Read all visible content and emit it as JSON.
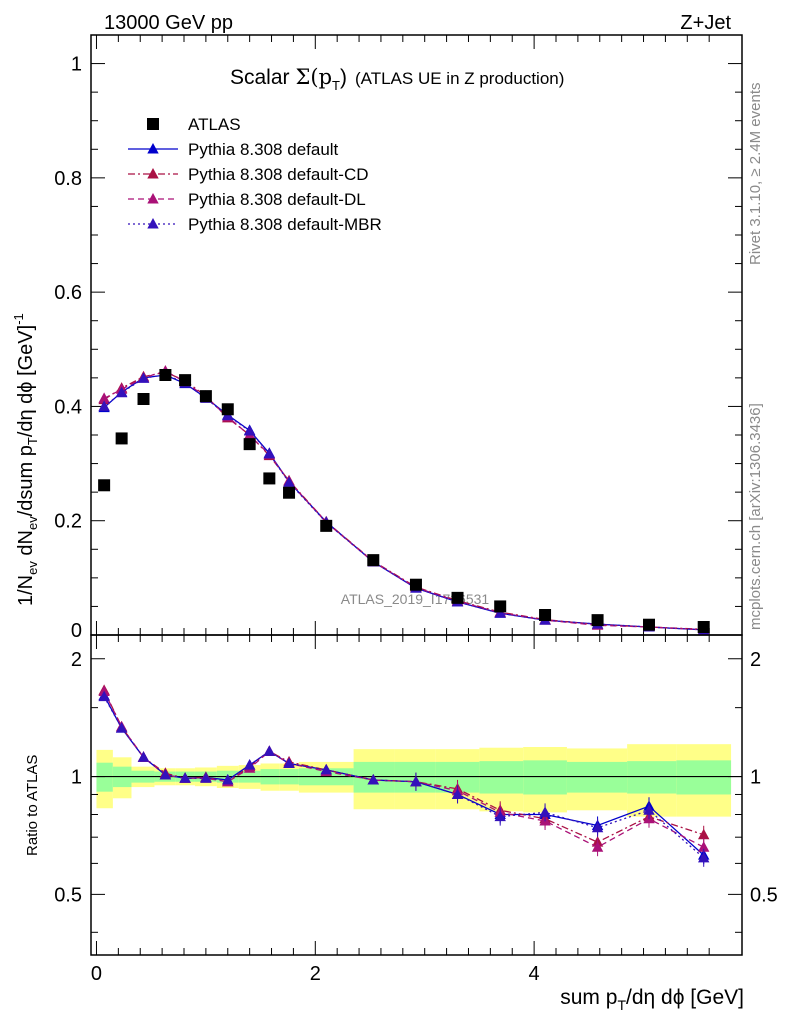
{
  "header": {
    "energy": "13000 GeV pp",
    "process": "Z+Jet",
    "title_main": "Scalar",
    "title_sigma": "Σ(p",
    "title_sub_T": "T",
    "title_tail": ")",
    "title_extra": "(ATLAS UE in Z production)",
    "watermark": "ATLAS_2019_I1736531",
    "rivet_label": "Rivet 3.1.10, ≥ 2.4M events",
    "mcplots_label": "mcplots.cern.ch [arXiv:1306.3436]"
  },
  "axes": {
    "ylabel_main": "1/N_ev dN_ev/dsum p_T/dη dϕ [GeV]^-1",
    "ylabel_ratio": "Ratio to ATLAS",
    "xlabel": "sum p_T/dη dϕ [GeV]",
    "ylabel_main_parts": {
      "a": "1/N",
      "b": "ev",
      "c": " dN",
      "d": "ev",
      "e": "/dsum p",
      "f": "T",
      "g": "/dη dϕ  [GeV]",
      "h": "-1"
    },
    "xlabel_parts": {
      "a": "sum p",
      "b": "T",
      "c": "/dη dϕ [GeV]"
    }
  },
  "chart_data": {
    "type": "scatter",
    "title": "Scalar Σ(p_T) (ATLAS UE in Z production)",
    "xlim": [
      -0.05,
      5.9
    ],
    "ylim": [
      0,
      1.05
    ],
    "ratio_ylim": [
      0.35,
      2.3
    ],
    "x_ticks": [
      0,
      2,
      4
    ],
    "y_ticks": [
      0,
      0.2,
      0.4,
      0.6,
      0.8,
      1
    ],
    "ratio_ticks": [
      0.5,
      1,
      2
    ],
    "legend_position": "top-left",
    "x": [
      0.07,
      0.23,
      0.43,
      0.63,
      0.81,
      1.0,
      1.2,
      1.4,
      1.58,
      1.76,
      2.1,
      2.53,
      2.92,
      3.3,
      3.69,
      4.1,
      4.58,
      5.05,
      5.55
    ],
    "bin_edges": [
      0.0,
      0.15,
      0.32,
      0.53,
      0.72,
      0.9,
      1.1,
      1.3,
      1.5,
      1.67,
      1.85,
      2.35,
      2.72,
      3.1,
      3.5,
      3.9,
      4.3,
      4.85,
      5.3,
      5.8
    ],
    "band_inner": [
      0.085,
      0.06,
      0.035,
      0.03,
      0.03,
      0.03,
      0.035,
      0.035,
      0.045,
      0.045,
      0.05,
      0.09,
      0.09,
      0.09,
      0.095,
      0.1,
      0.09,
      0.095,
      0.1
    ],
    "band_outer": [
      0.17,
      0.12,
      0.06,
      0.05,
      0.05,
      0.055,
      0.065,
      0.07,
      0.08,
      0.08,
      0.09,
      0.175,
      0.175,
      0.175,
      0.185,
      0.19,
      0.18,
      0.21,
      0.21
    ],
    "series": [
      {
        "name": "ATLAS",
        "marker": "square",
        "color": "#000000",
        "values": [
          0.262,
          0.344,
          0.413,
          0.455,
          0.446,
          0.418,
          0.395,
          0.334,
          0.274,
          0.249,
          0.191,
          0.131,
          0.088,
          0.065,
          0.05,
          0.035,
          0.026,
          0.018,
          0.014
        ]
      },
      {
        "name": "Pythia 8.308 default",
        "marker": "triangle",
        "line": "solid",
        "color": "#0000cc",
        "values": [
          0.398,
          0.425,
          0.45,
          0.455,
          0.44,
          0.415,
          0.385,
          0.358,
          0.318,
          0.268,
          0.198,
          0.128,
          0.082,
          0.058,
          0.038,
          0.026,
          0.019,
          0.014,
          0.009
        ],
        "ratio": [
          1.61,
          1.33,
          1.12,
          1.01,
          0.99,
          0.995,
          0.98,
          1.07,
          1.16,
          1.08,
          1.04,
          0.98,
          0.97,
          0.9,
          0.8,
          0.8,
          0.75,
          0.84,
          0.63
        ]
      },
      {
        "name": "Pythia 8.308 default-CD",
        "marker": "triangle",
        "line": "dashdot",
        "color": "#aa1144",
        "values": [
          0.412,
          0.432,
          0.452,
          0.46,
          0.445,
          0.418,
          0.38,
          0.35,
          0.314,
          0.27,
          0.198,
          0.129,
          0.084,
          0.06,
          0.04,
          0.027,
          0.018,
          0.014,
          0.01
        ],
        "ratio": [
          1.66,
          1.34,
          1.12,
          1.02,
          0.99,
          0.995,
          0.97,
          1.06,
          1.16,
          1.09,
          1.04,
          0.98,
          0.97,
          0.93,
          0.82,
          0.78,
          0.68,
          0.79,
          0.71
        ]
      },
      {
        "name": "Pythia 8.308 default-DL",
        "marker": "triangle",
        "line": "dashed",
        "color": "#aa1177",
        "values": [
          0.414,
          0.43,
          0.45,
          0.462,
          0.443,
          0.416,
          0.382,
          0.349,
          0.316,
          0.269,
          0.197,
          0.128,
          0.083,
          0.059,
          0.039,
          0.026,
          0.017,
          0.014,
          0.009
        ],
        "ratio": [
          1.65,
          1.34,
          1.12,
          1.01,
          0.99,
          0.99,
          0.97,
          1.05,
          1.16,
          1.08,
          1.03,
          0.98,
          0.97,
          0.92,
          0.81,
          0.77,
          0.66,
          0.78,
          0.66
        ]
      },
      {
        "name": "Pythia 8.308 default-MBR",
        "marker": "triangle",
        "line": "dotted",
        "color": "#3311bb",
        "values": [
          0.4,
          0.424,
          0.449,
          0.456,
          0.441,
          0.414,
          0.384,
          0.357,
          0.317,
          0.267,
          0.197,
          0.128,
          0.082,
          0.058,
          0.038,
          0.026,
          0.019,
          0.014,
          0.009
        ],
        "ratio": [
          1.6,
          1.33,
          1.12,
          1.01,
          0.99,
          0.99,
          0.98,
          1.07,
          1.16,
          1.08,
          1.04,
          0.98,
          0.97,
          0.9,
          0.79,
          0.81,
          0.74,
          0.82,
          0.62
        ]
      }
    ]
  }
}
